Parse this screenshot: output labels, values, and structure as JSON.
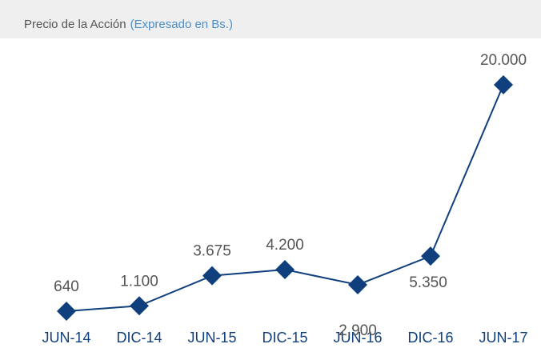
{
  "chart_data": {
    "type": "line",
    "title": "Precio de la Acción",
    "subtitle": "(Expresado en Bs.)",
    "categories": [
      "JUN-14",
      "DIC-14",
      "JUN-15",
      "DIC-15",
      "JUN-16",
      "DIC-16",
      "JUN-17"
    ],
    "series": [
      {
        "name": "Precio",
        "color": "#0f3f7d",
        "values": [
          640,
          1100,
          3675,
          4200,
          2900,
          5350,
          20000
        ],
        "value_labels": [
          "640",
          "1.100",
          "3.675",
          "4.200",
          "2.900",
          "5.350",
          "20.000"
        ]
      }
    ]
  }
}
